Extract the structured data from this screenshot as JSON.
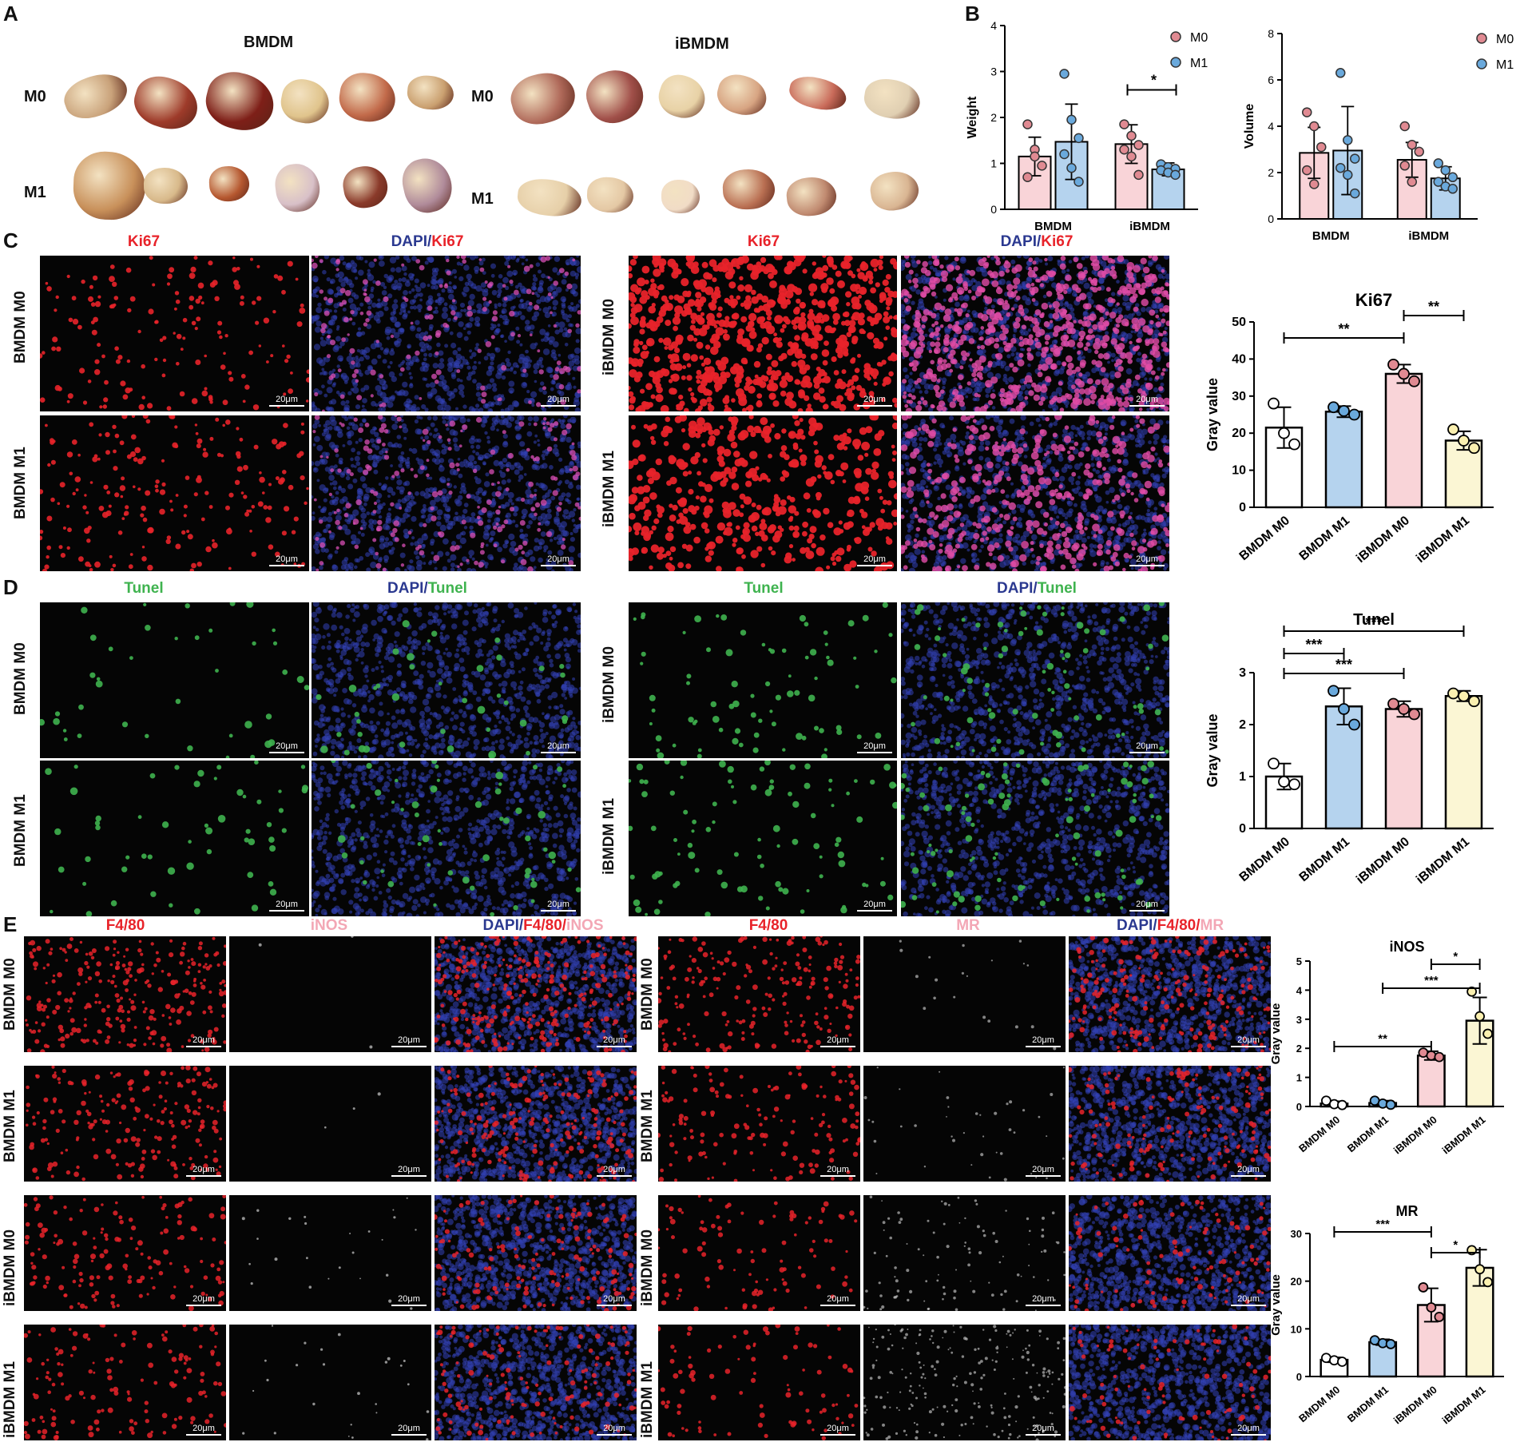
{
  "panels": {
    "A": "A",
    "B": "B",
    "C": "C",
    "D": "D",
    "E": "E"
  },
  "sectionA": {
    "group_left": "BMDM",
    "group_right": "iBMDM",
    "row_m0": "M0",
    "row_m1": "M1"
  },
  "sectionC": {
    "left_title_1": "Ki67",
    "left_title_2a": "DAPI/",
    "left_title_2b": "Ki67",
    "right_title_1": "Ki67",
    "right_title_2a": "DAPI/",
    "right_title_2b": "Ki67",
    "rows": [
      "BMDM M0",
      "BMDM M1",
      "iBMDM M0",
      "iBMDM M1"
    ]
  },
  "sectionD": {
    "left_title_1": "Tunel",
    "left_title_2a": "DAPI/",
    "left_title_2b": "Tunel",
    "right_title_1": "Tunel",
    "right_title_2a": "DAPI/",
    "right_title_2b": "Tunel",
    "rows": [
      "BMDM M0",
      "BMDM M1",
      "iBMDM M0",
      "iBMDM M1"
    ]
  },
  "sectionE": {
    "left_titles": [
      "F4/80",
      "iNOS"
    ],
    "left_merge": [
      "DAPI/",
      "F4/80/",
      "iNOS"
    ],
    "right_titles": [
      "F4/80",
      "MR"
    ],
    "right_merge": [
      "DAPI/",
      "F4/80/",
      "MR"
    ],
    "rows": [
      "BMDM M0",
      "BMDM M1",
      "iBMDM M0",
      "iBMDM M1"
    ]
  },
  "scale_label": "20μm",
  "colors": {
    "pink": "#f9d4d8",
    "blue": "#b5d3ee",
    "yellow": "#fbf6d4",
    "white": "#ffffff",
    "pinkDot": "#e08a92",
    "blueDot": "#6aa9dc",
    "ki67": "#e8232a",
    "dapi": "#2b3990",
    "tunel": "#3fb34f",
    "inos": "#f3a7b5"
  },
  "chart_data": [
    {
      "id": "weight",
      "type": "bar",
      "title": "",
      "categories": [
        "BMDM",
        "iBMDM"
      ],
      "series": [
        {
          "name": "M0",
          "values": [
            1.15,
            1.42
          ],
          "err": [
            0.42,
            0.42
          ],
          "points": [
            [
              1.85,
              1.3,
              0.95,
              0.7,
              1.15
            ],
            [
              1.85,
              1.6,
              1.4,
              1.3,
              1.15,
              0.75
            ]
          ]
        },
        {
          "name": "M1",
          "values": [
            1.47,
            0.87
          ],
          "err": [
            0.82,
            0.14
          ],
          "points": [
            [
              2.95,
              1.95,
              1.55,
              1.2,
              0.9,
              0.6
            ],
            [
              0.98,
              0.92,
              0.88,
              0.85,
              0.8,
              0.75
            ]
          ]
        }
      ],
      "ylabel": "Weight",
      "ylim": [
        0,
        4
      ],
      "yticks": [
        0,
        1,
        2,
        3,
        4
      ],
      "significance": [
        {
          "label": "*",
          "group": "iBMDM"
        }
      ],
      "legend": [
        "M0",
        "M1"
      ],
      "legend_position": "top-right"
    },
    {
      "id": "volume",
      "type": "bar",
      "title": "",
      "categories": [
        "BMDM",
        "iBMDM"
      ],
      "series": [
        {
          "name": "M0",
          "values": [
            2.85,
            2.55
          ],
          "err": [
            1.1,
            0.75
          ],
          "points": [
            [
              4.6,
              4.0,
              3.1,
              2.1,
              1.5
            ],
            [
              4.0,
              3.2,
              2.9,
              2.3,
              1.6
            ]
          ]
        },
        {
          "name": "M1",
          "values": [
            2.95,
            1.75
          ],
          "err": [
            1.9,
            0.5
          ],
          "points": [
            [
              6.3,
              3.4,
              2.6,
              2.2,
              1.9,
              1.1
            ],
            [
              2.4,
              2.1,
              1.8,
              1.6,
              1.4,
              1.3
            ]
          ]
        }
      ],
      "ylabel": "Volume",
      "ylim": [
        0,
        8
      ],
      "yticks": [
        0,
        2,
        4,
        6,
        8
      ],
      "legend": [
        "M0",
        "M1"
      ],
      "legend_position": "top-right"
    },
    {
      "id": "ki67",
      "type": "bar",
      "title": "Ki67",
      "categories": [
        "BMDM M0",
        "BMDM M1",
        "iBMDM M0",
        "iBMDM M1"
      ],
      "values": [
        21.5,
        25.8,
        36,
        18
      ],
      "err": [
        5.5,
        1.5,
        2.5,
        2.5
      ],
      "points": [
        [
          28,
          20,
          17
        ],
        [
          27,
          26,
          25
        ],
        [
          38.5,
          36,
          34
        ],
        [
          21,
          18,
          16
        ]
      ],
      "ylabel": "Gray value",
      "ylim": [
        0,
        50
      ],
      "yticks": [
        0,
        10,
        20,
        30,
        40,
        50
      ],
      "significance": [
        {
          "from": 0,
          "to": 2,
          "label": "**"
        },
        {
          "from": 2,
          "to": 3,
          "label": "**"
        }
      ]
    },
    {
      "id": "tunel",
      "type": "bar",
      "title": "Tunel",
      "categories": [
        "BMDM M0",
        "BMDM M1",
        "iBMDM M0",
        "iBMDM M1"
      ],
      "values": [
        1.0,
        2.35,
        2.3,
        2.55
      ],
      "err": [
        0.25,
        0.35,
        0.15,
        0.1
      ],
      "points": [
        [
          1.25,
          0.9,
          0.85
        ],
        [
          2.65,
          2.3,
          2.0
        ],
        [
          2.4,
          2.3,
          2.2
        ],
        [
          2.6,
          2.55,
          2.45
        ]
      ],
      "ylabel": "Gray value",
      "ylim": [
        0,
        3
      ],
      "yticks": [
        0,
        1,
        2,
        3
      ],
      "significance": [
        {
          "from": 0,
          "to": 1,
          "label": "***"
        },
        {
          "from": 0,
          "to": 2,
          "label": "***"
        },
        {
          "from": 0,
          "to": 3,
          "label": "***"
        }
      ]
    },
    {
      "id": "inos",
      "type": "bar",
      "title": "iNOS",
      "categories": [
        "BMDM M0",
        "BMDM M1",
        "iBMDM M0",
        "iBMDM M1"
      ],
      "values": [
        0.1,
        0.12,
        1.75,
        2.95
      ],
      "err": [
        0.08,
        0.08,
        0.15,
        0.8
      ],
      "points": [
        [
          0.2,
          0.08,
          0.05
        ],
        [
          0.2,
          0.1,
          0.06
        ],
        [
          1.85,
          1.75,
          1.7
        ],
        [
          3.95,
          3.1,
          2.5
        ]
      ],
      "ylabel": "Gray value",
      "ylim": [
        0,
        5
      ],
      "yticks": [
        0,
        1,
        2,
        3,
        4,
        5
      ],
      "significance": [
        {
          "from": 0,
          "to": 2,
          "label": "**"
        },
        {
          "from": 1,
          "to": 3,
          "label": "***"
        },
        {
          "from": 2,
          "to": 3,
          "label": "*"
        }
      ]
    },
    {
      "id": "mr",
      "type": "bar",
      "title": "MR",
      "categories": [
        "BMDM M0",
        "BMDM M1",
        "iBMDM M0",
        "iBMDM M1"
      ],
      "values": [
        3.5,
        7.2,
        15,
        22.8
      ],
      "err": [
        0.5,
        0.6,
        3.5,
        3.8
      ],
      "points": [
        [
          3.9,
          3.4,
          3.1
        ],
        [
          7.6,
          7.0,
          6.8
        ],
        [
          18.7,
          14.5,
          12.5
        ],
        [
          26.5,
          22.5,
          19.8
        ]
      ],
      "ylabel": "Gray value",
      "ylim": [
        0,
        30
      ],
      "yticks": [
        0,
        10,
        20,
        30
      ],
      "significance": [
        {
          "from": 0,
          "to": 2,
          "label": "***"
        },
        {
          "from": 2,
          "to": 3,
          "label": "*"
        }
      ]
    }
  ]
}
